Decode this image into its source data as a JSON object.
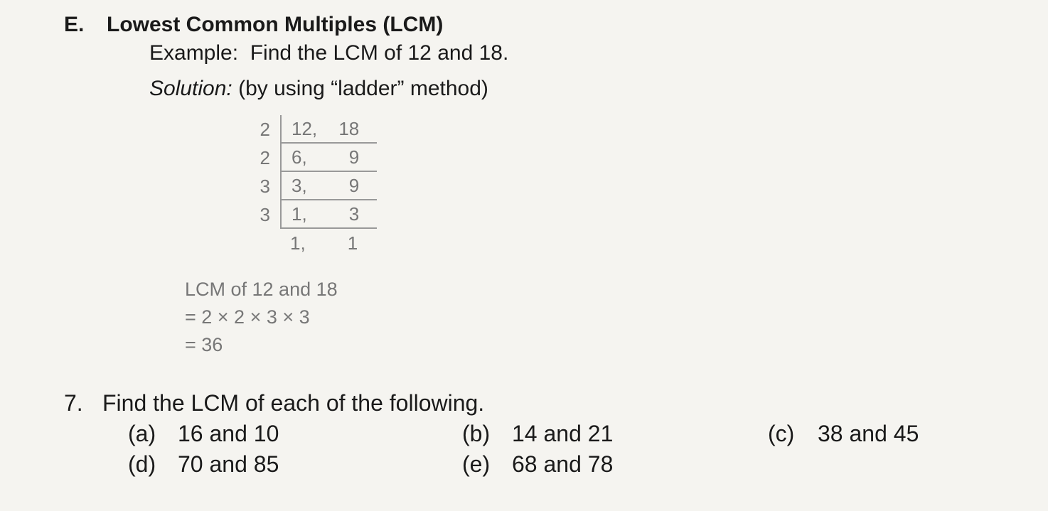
{
  "colors": {
    "page_bg": "#f5f4f0",
    "text_primary": "#1a1a1a",
    "text_faded": "#777777",
    "ladder_border": "#999999"
  },
  "typography": {
    "heading_fontsize_pt": 22,
    "body_fontsize_pt": 22,
    "ladder_fontsize_pt": 19,
    "question_fontsize_pt": 24,
    "heading_weight": "700",
    "body_weight": "400"
  },
  "section": {
    "letter": "E.",
    "title": "Lowest Common Multiples (LCM)"
  },
  "example": {
    "prefix": "Example:",
    "text": "Find the LCM of 12 and 18."
  },
  "solution": {
    "prefix": "Solution:",
    "text": "(by using “ladder” method)"
  },
  "ladder": {
    "rows": [
      {
        "divisor": "2",
        "a": "12,",
        "b": "18"
      },
      {
        "divisor": "2",
        "a": "6,",
        "b": "9"
      },
      {
        "divisor": "3",
        "a": "3,",
        "b": "9"
      },
      {
        "divisor": "3",
        "a": "1,",
        "b": "3"
      },
      {
        "divisor": "",
        "a": "1,",
        "b": "1"
      }
    ]
  },
  "lcm_calc": {
    "line1": "LCM of 12 and 18",
    "line2": "= 2 × 2 × 3 × 3",
    "line3": "= 36"
  },
  "question7": {
    "number": "7.",
    "text": "Find the LCM of each of the following.",
    "parts": {
      "a": {
        "letter": "(a)",
        "text": "16 and 10"
      },
      "b": {
        "letter": "(b)",
        "text": "14 and 21"
      },
      "c": {
        "letter": "(c)",
        "text": "38 and 45"
      },
      "d": {
        "letter": "(d)",
        "text": "70 and 85"
      },
      "e": {
        "letter": "(e)",
        "text": "68 and 78"
      }
    }
  }
}
